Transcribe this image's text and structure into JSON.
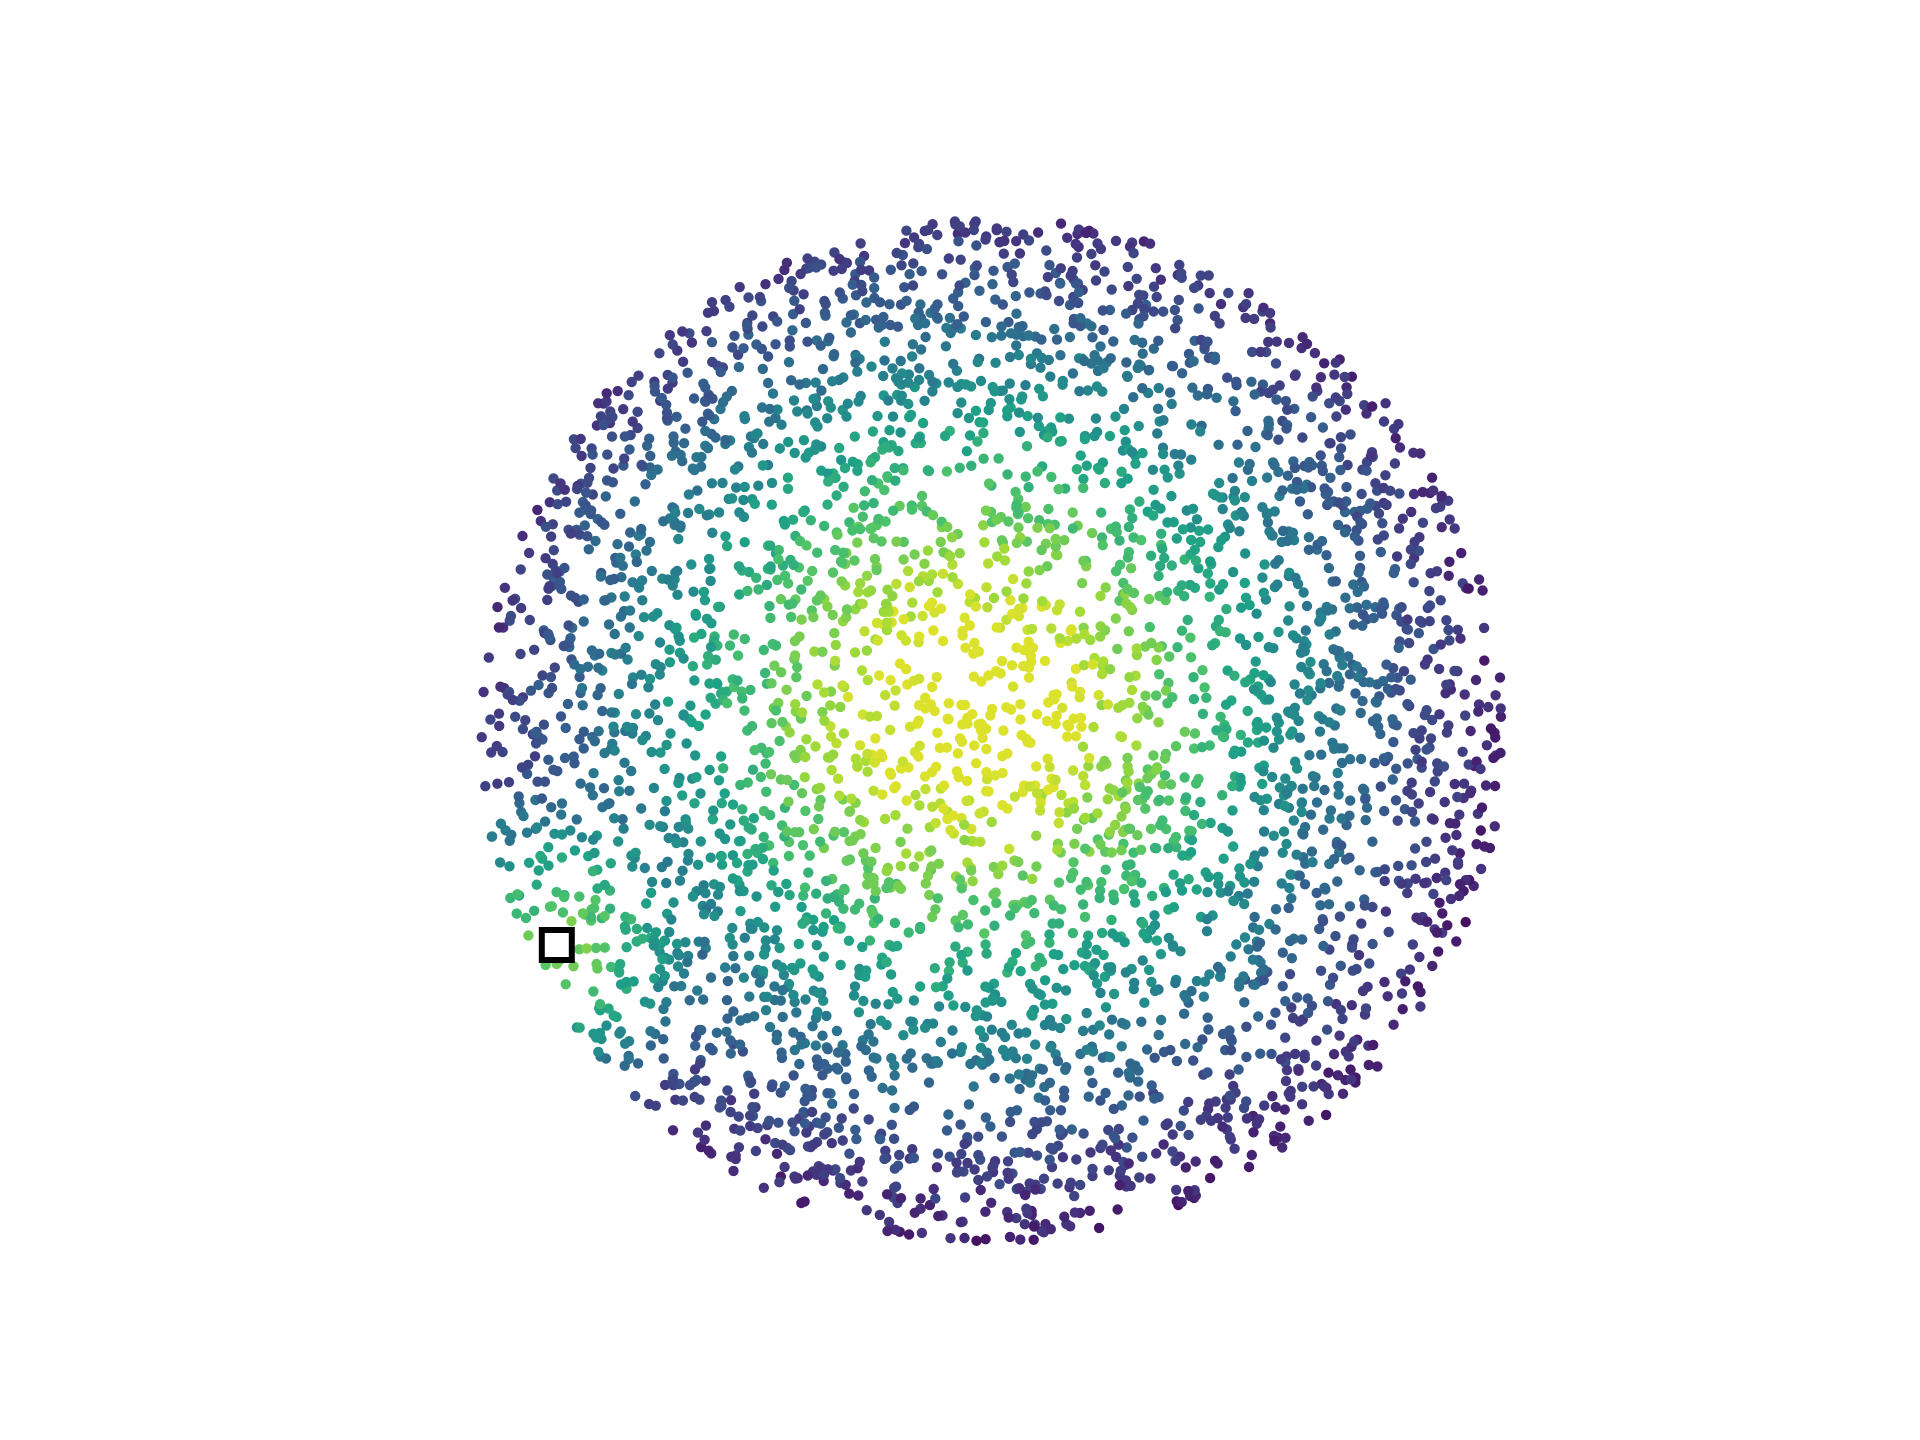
{
  "chart_data": {
    "type": "scatter",
    "title": "",
    "xlabel": "",
    "ylabel": "",
    "axes_visible": false,
    "grid": false,
    "legend": "none",
    "colormap": "viridis",
    "colormap_stops": [
      "#440154",
      "#46327e",
      "#365c8d",
      "#277f8e",
      "#1fa187",
      "#4ac16d",
      "#a0da39",
      "#fde725"
    ],
    "point_count": 4000,
    "point_color_range": [
      0.0,
      0.95
    ],
    "disk": {
      "center": [
        0,
        0
      ],
      "radius": 1
    },
    "xlim": [
      -1.2,
      1.2
    ],
    "ylim": [
      -1.15,
      1.15
    ],
    "color_peaks": [
      {
        "x": -0.05,
        "y": 0.06,
        "value": 0.92
      },
      {
        "x": -0.85,
        "y": -0.42,
        "value": 0.88
      }
    ],
    "marker": {
      "shape": "square",
      "x": -0.85,
      "y": -0.42,
      "fill": "#ffffff",
      "edge": "#000000"
    }
  }
}
